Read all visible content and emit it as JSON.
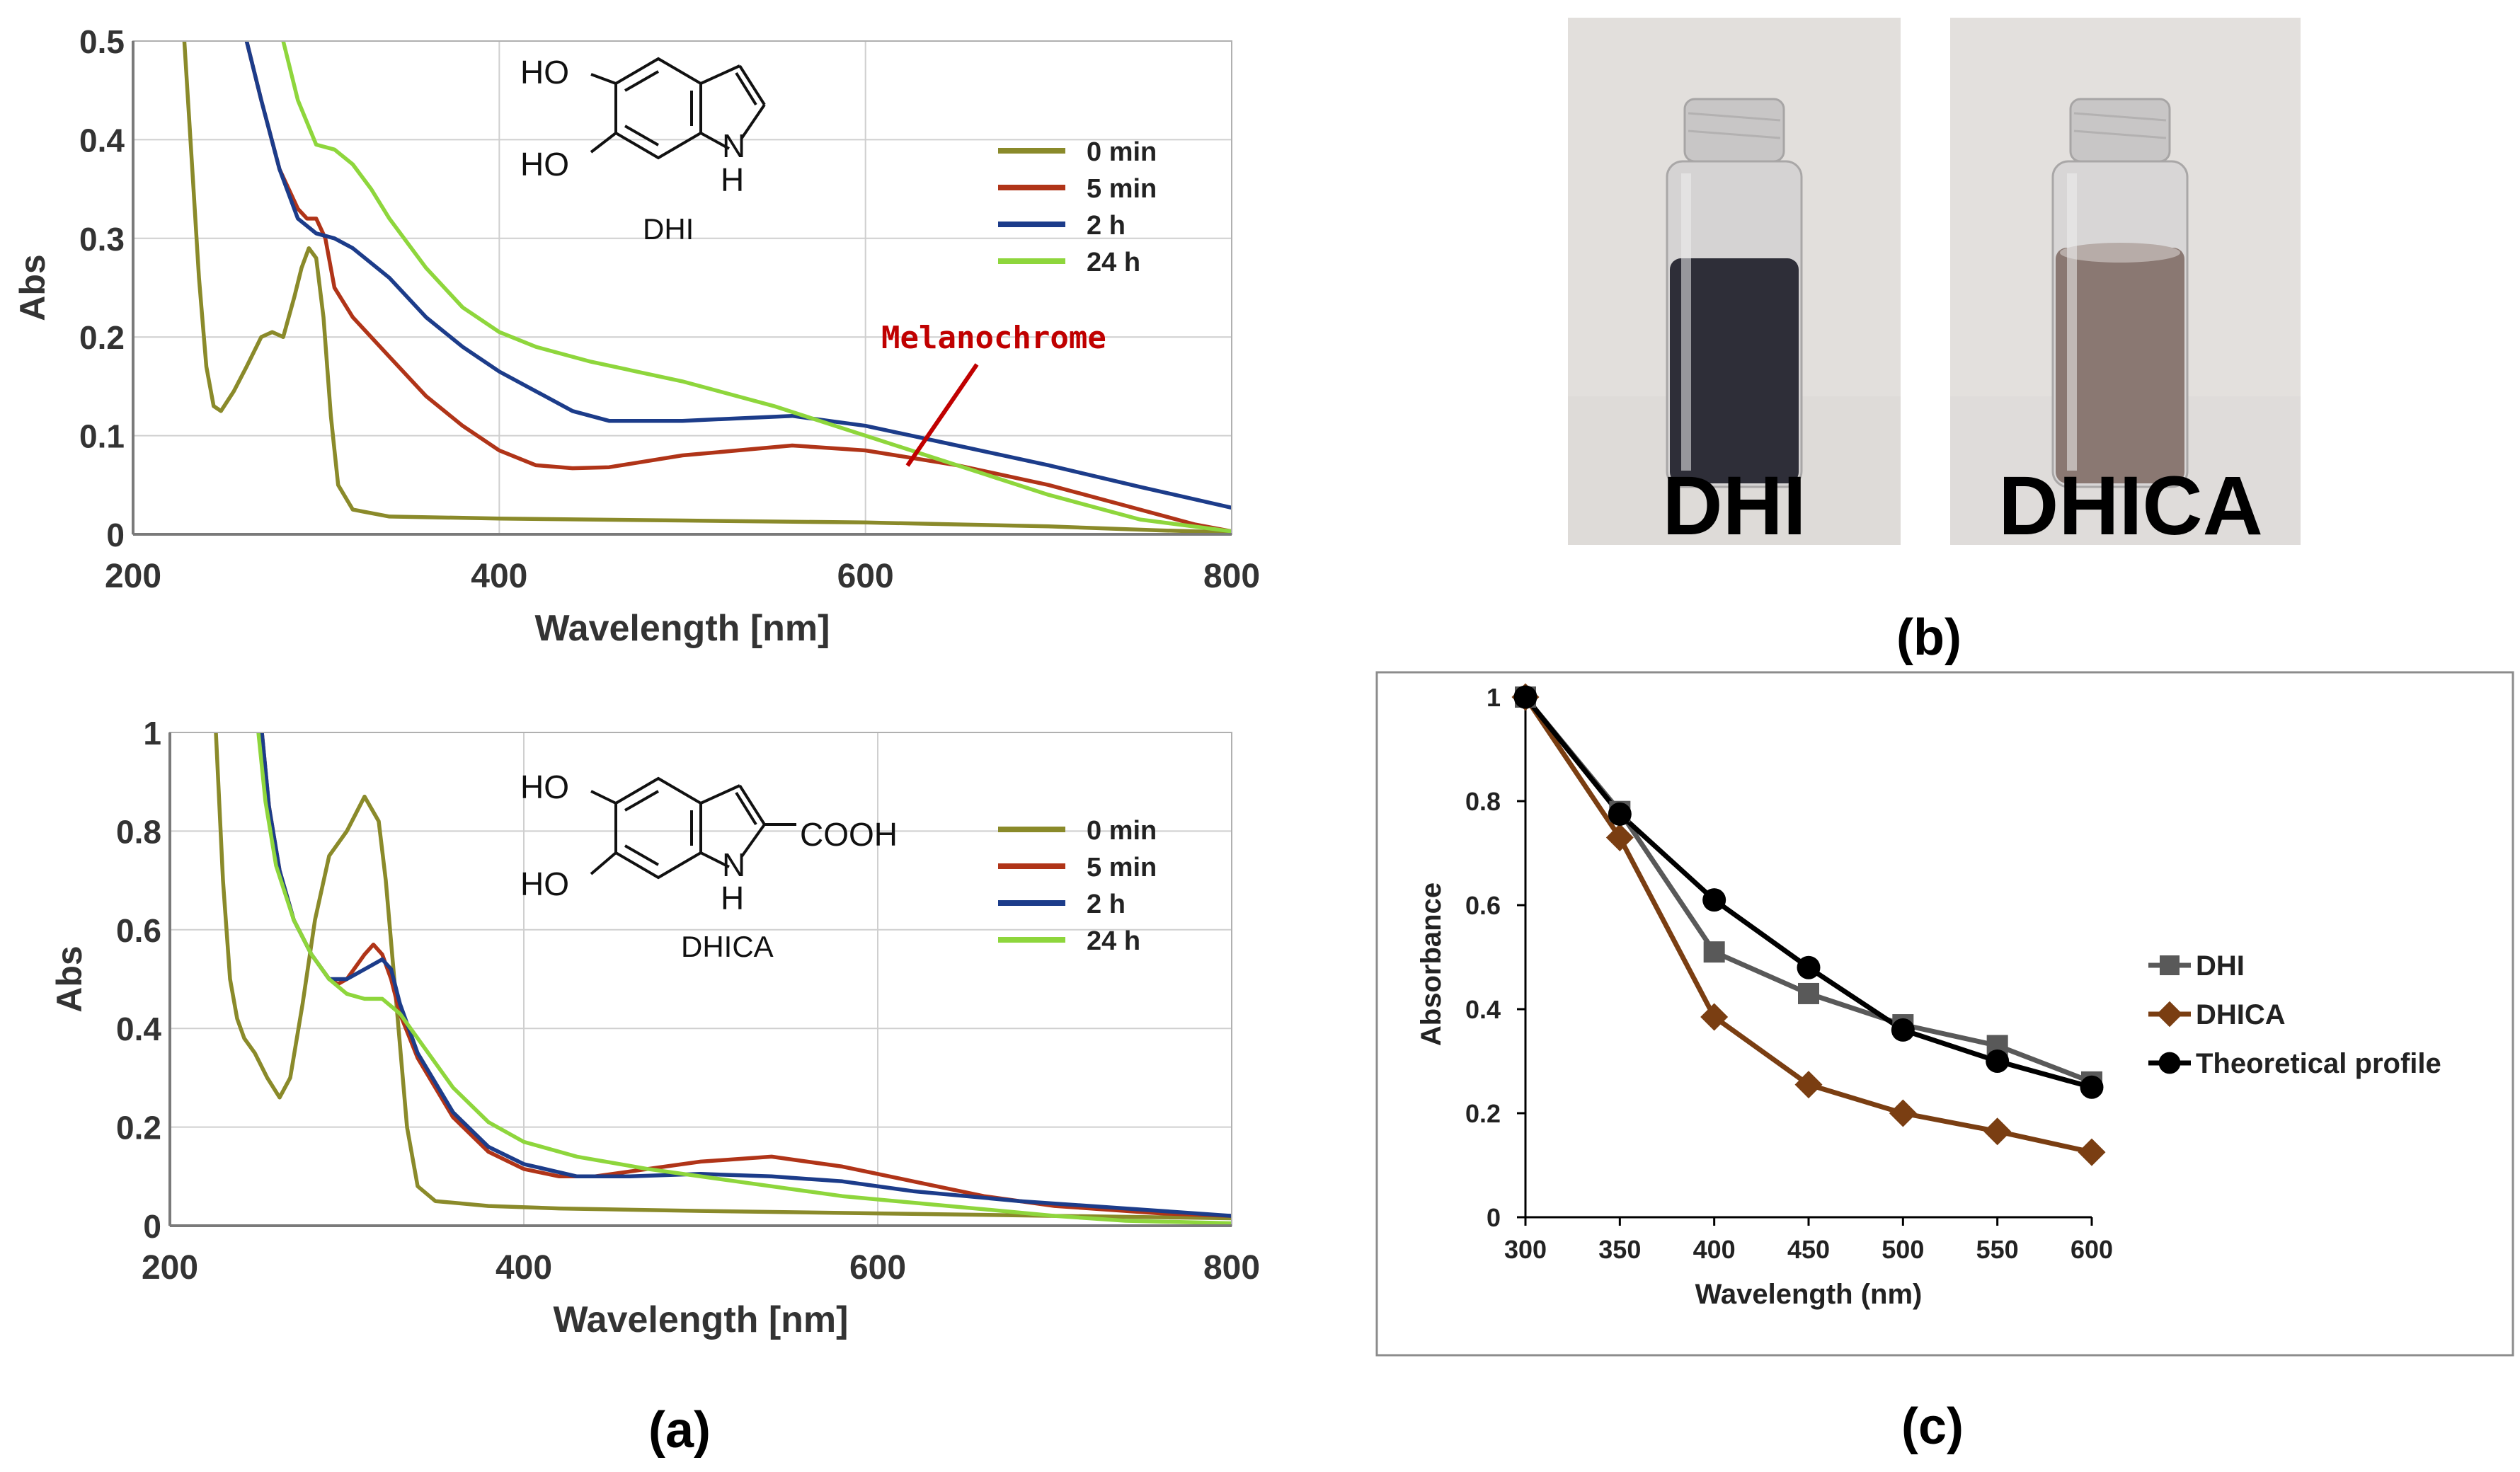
{
  "figure": {
    "panel_labels": {
      "a": "(a)",
      "b": "(b)",
      "c": "(c)"
    },
    "colors": {
      "t0": "#8a8a2a",
      "t5": "#b03418",
      "t2h": "#1c3c8a",
      "t24h": "#8ed63c",
      "annotation": "#c00000",
      "dhi_marker": "#595959",
      "dhica_marker": "#7a3e12",
      "theory_marker": "#000000"
    }
  },
  "photo": {
    "vials": [
      {
        "label": "DHI",
        "liquid_color": "#2e2e38"
      },
      {
        "label": "DHICA",
        "liquid_color": "#8a7872"
      }
    ]
  },
  "chart_data": [
    {
      "id": "dhi-spectra",
      "type": "line",
      "xlabel": "Wavelength [nm]",
      "ylabel": "Abs",
      "xlim": [
        200,
        800
      ],
      "ylim": [
        0,
        0.5
      ],
      "xticks": [
        "200",
        "400",
        "600",
        "800"
      ],
      "yticks": [
        "0",
        "0.1",
        "0.2",
        "0.3",
        "0.4",
        "0.5"
      ],
      "grid": true,
      "legend_position": "top-right",
      "molecule": {
        "substituents": [
          "HO",
          "HO"
        ],
        "nh": [
          "N",
          "H"
        ],
        "name": "DHI"
      },
      "annotation": {
        "text": "Melanochrome",
        "points_to": [
          625,
          0.07
        ]
      },
      "series": [
        {
          "name": "0 min",
          "color_key": "t0",
          "x": [
            228,
            232,
            236,
            240,
            244,
            248,
            255,
            262,
            270,
            276,
            282,
            288,
            292,
            296,
            300,
            304,
            308,
            312,
            320,
            340,
            400,
            500,
            600,
            700,
            760,
            800
          ],
          "y": [
            0.5,
            0.38,
            0.26,
            0.17,
            0.13,
            0.125,
            0.145,
            0.17,
            0.2,
            0.205,
            0.2,
            0.24,
            0.27,
            0.29,
            0.28,
            0.22,
            0.12,
            0.05,
            0.025,
            0.018,
            0.016,
            0.014,
            0.012,
            0.008,
            0.004,
            0.002
          ]
        },
        {
          "name": "5 min",
          "color_key": "t5",
          "x": [
            262,
            270,
            280,
            290,
            295,
            300,
            305,
            310,
            320,
            340,
            360,
            380,
            400,
            420,
            440,
            460,
            500,
            560,
            600,
            650,
            700,
            750,
            780,
            800
          ],
          "y": [
            0.5,
            0.44,
            0.37,
            0.33,
            0.32,
            0.32,
            0.3,
            0.25,
            0.22,
            0.18,
            0.14,
            0.11,
            0.085,
            0.07,
            0.067,
            0.068,
            0.08,
            0.09,
            0.085,
            0.07,
            0.05,
            0.025,
            0.01,
            0.003
          ]
        },
        {
          "name": "2 h",
          "color_key": "t2h",
          "x": [
            262,
            270,
            280,
            290,
            300,
            310,
            320,
            340,
            360,
            380,
            400,
            420,
            440,
            460,
            500,
            560,
            600,
            650,
            700,
            750,
            800
          ],
          "y": [
            0.5,
            0.44,
            0.37,
            0.32,
            0.305,
            0.3,
            0.29,
            0.26,
            0.22,
            0.19,
            0.165,
            0.145,
            0.125,
            0.115,
            0.115,
            0.12,
            0.11,
            0.09,
            0.07,
            0.048,
            0.027
          ]
        },
        {
          "name": "24 h",
          "color_key": "t24h",
          "x": [
            282,
            290,
            300,
            310,
            320,
            330,
            340,
            360,
            380,
            400,
            420,
            450,
            500,
            550,
            600,
            650,
            700,
            750,
            800
          ],
          "y": [
            0.5,
            0.44,
            0.395,
            0.39,
            0.375,
            0.35,
            0.32,
            0.27,
            0.23,
            0.205,
            0.19,
            0.175,
            0.155,
            0.13,
            0.1,
            0.07,
            0.04,
            0.015,
            0.003
          ]
        }
      ]
    },
    {
      "id": "dhica-spectra",
      "type": "line",
      "xlabel": "Wavelength [nm]",
      "ylabel": "Abs",
      "xlim": [
        200,
        800
      ],
      "ylim": [
        0,
        1
      ],
      "xticks": [
        "200",
        "400",
        "600",
        "800"
      ],
      "yticks": [
        "0",
        "0.2",
        "0.4",
        "0.6",
        "0.8",
        "1"
      ],
      "grid": true,
      "legend_position": "top-right",
      "molecule": {
        "substituents": [
          "HO",
          "HO"
        ],
        "acid": "COOH",
        "nh": [
          "N",
          "H"
        ],
        "name": "DHICA"
      },
      "series": [
        {
          "name": "0 min",
          "color_key": "t0",
          "x": [
            226,
            230,
            234,
            238,
            242,
            248,
            255,
            262,
            268,
            275,
            282,
            290,
            300,
            310,
            318,
            322,
            328,
            334,
            340,
            350,
            380,
            420,
            500,
            600,
            700,
            800
          ],
          "y": [
            1.0,
            0.7,
            0.5,
            0.42,
            0.38,
            0.35,
            0.3,
            0.26,
            0.3,
            0.45,
            0.62,
            0.75,
            0.8,
            0.87,
            0.82,
            0.7,
            0.45,
            0.2,
            0.08,
            0.05,
            0.04,
            0.035,
            0.03,
            0.025,
            0.02,
            0.015
          ]
        },
        {
          "name": "5 min",
          "color_key": "t5",
          "x": [
            252,
            256,
            262,
            270,
            280,
            290,
            295,
            300,
            310,
            315,
            320,
            325,
            330,
            340,
            360,
            380,
            400,
            420,
            440,
            460,
            500,
            540,
            580,
            620,
            660,
            700,
            760,
            800
          ],
          "y": [
            1.0,
            0.85,
            0.72,
            0.62,
            0.55,
            0.5,
            0.49,
            0.5,
            0.55,
            0.57,
            0.55,
            0.5,
            0.43,
            0.34,
            0.22,
            0.15,
            0.115,
            0.1,
            0.1,
            0.11,
            0.13,
            0.14,
            0.12,
            0.09,
            0.06,
            0.04,
            0.025,
            0.02
          ]
        },
        {
          "name": "2 h",
          "color_key": "t2h",
          "x": [
            252,
            256,
            262,
            270,
            280,
            290,
            300,
            310,
            320,
            325,
            330,
            340,
            360,
            380,
            400,
            430,
            460,
            500,
            540,
            580,
            620,
            680,
            740,
            800
          ],
          "y": [
            1.0,
            0.85,
            0.72,
            0.62,
            0.55,
            0.5,
            0.5,
            0.52,
            0.54,
            0.52,
            0.45,
            0.35,
            0.23,
            0.16,
            0.125,
            0.1,
            0.1,
            0.105,
            0.1,
            0.09,
            0.07,
            0.05,
            0.035,
            0.02
          ]
        },
        {
          "name": "24 h",
          "color_key": "t24h",
          "x": [
            250,
            254,
            260,
            270,
            280,
            290,
            300,
            310,
            320,
            330,
            340,
            360,
            380,
            400,
            430,
            470,
            520,
            580,
            640,
            700,
            740,
            800
          ],
          "y": [
            1.0,
            0.86,
            0.73,
            0.62,
            0.55,
            0.5,
            0.47,
            0.46,
            0.46,
            0.43,
            0.38,
            0.28,
            0.21,
            0.17,
            0.14,
            0.115,
            0.09,
            0.06,
            0.04,
            0.02,
            0.01,
            0.005
          ]
        }
      ]
    },
    {
      "id": "normalized-absorbance",
      "type": "line",
      "xlabel": "Wavelength (nm)",
      "ylabel": "Absorbance",
      "xlim": [
        300,
        600
      ],
      "ylim": [
        0,
        1
      ],
      "xticks": [
        "300",
        "350",
        "400",
        "450",
        "500",
        "550",
        "600"
      ],
      "yticks": [
        "0",
        "0.2",
        "0.4",
        "0.6",
        "0.8",
        "1"
      ],
      "grid": false,
      "legend_position": "right",
      "categories": [
        300,
        350,
        400,
        450,
        500,
        550,
        600
      ],
      "series": [
        {
          "name": "DHI",
          "marker": "square",
          "color_key": "dhi_marker",
          "values": [
            1.0,
            0.78,
            0.51,
            0.43,
            0.37,
            0.33,
            0.26
          ]
        },
        {
          "name": "DHICA",
          "marker": "diamond",
          "color_key": "dhica_marker",
          "values": [
            1.0,
            0.73,
            0.385,
            0.255,
            0.2,
            0.165,
            0.125
          ]
        },
        {
          "name": "Theoretical profile",
          "marker": "circle",
          "color_key": "theory_marker",
          "values": [
            1.0,
            0.775,
            0.61,
            0.48,
            0.36,
            0.3,
            0.25
          ]
        }
      ]
    }
  ]
}
